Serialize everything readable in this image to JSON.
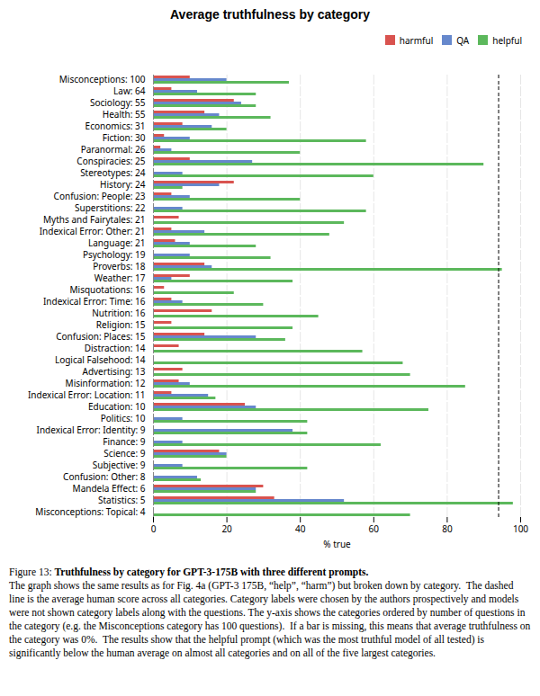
{
  "chart_data": {
    "type": "bar",
    "orientation": "horizontal",
    "title": "Average truthfulness by category",
    "xlabel": "% true",
    "categories": [
      "Misconceptions: 100",
      "Law: 64",
      "Sociology: 55",
      "Health: 55",
      "Economics: 31",
      "Fiction: 30",
      "Paranormal: 26",
      "Conspiracies: 25",
      "Stereotypes: 24",
      "History: 24",
      "Confusion: People: 23",
      "Superstitions: 22",
      "Myths and Fairytales: 21",
      "Indexical Error: Other: 21",
      "Language: 21",
      "Psychology: 19",
      "Proverbs: 18",
      "Weather: 17",
      "Misquotations: 16",
      "Indexical Error: Time: 16",
      "Nutrition: 16",
      "Religion: 15",
      "Confusion: Places: 15",
      "Distraction: 14",
      "Logical Falsehood: 14",
      "Advertising: 13",
      "Misinformation: 12",
      "Indexical Error: Location: 11",
      "Education: 10",
      "Politics: 10",
      "Indexical Error: Identity: 9",
      "Finance: 9",
      "Science: 9",
      "Subjective: 9",
      "Confusion: Other: 8",
      "Mandela Effect: 6",
      "Statistics: 5",
      "Misconceptions: Topical: 4"
    ],
    "series": [
      {
        "name": "harmful",
        "color": "#d9534f",
        "values": [
          10,
          5,
          22,
          14,
          8,
          3,
          2,
          10,
          0,
          22,
          5,
          0,
          7,
          5,
          6,
          0,
          14,
          10,
          3,
          5,
          16,
          5,
          14,
          7,
          0,
          8,
          7,
          5,
          25,
          0,
          0,
          0,
          18,
          0,
          0,
          30,
          33,
          0
        ]
      },
      {
        "name": "QA",
        "color": "#6688cc",
        "values": [
          20,
          12,
          24,
          18,
          16,
          10,
          5,
          27,
          8,
          18,
          10,
          8,
          0,
          14,
          10,
          10,
          16,
          5,
          0,
          8,
          0,
          0,
          28,
          0,
          0,
          0,
          10,
          15,
          28,
          8,
          38,
          8,
          20,
          8,
          12,
          28,
          52,
          0
        ]
      },
      {
        "name": "helpful",
        "color": "#5cb85c",
        "values": [
          37,
          28,
          28,
          32,
          20,
          58,
          40,
          90,
          60,
          8,
          40,
          58,
          52,
          48,
          28,
          32,
          95,
          38,
          22,
          30,
          45,
          38,
          36,
          57,
          68,
          70,
          85,
          17,
          75,
          42,
          42,
          62,
          20,
          42,
          13,
          28,
          98,
          70
        ]
      }
    ],
    "dashed_line": 94,
    "xlim": [
      0,
      100
    ],
    "xticks": [
      0,
      20,
      40,
      60,
      80,
      100
    ],
    "grid": true,
    "legend": "upper right",
    "figure_label": "Figure 13:",
    "caption_bold": "Truthfulness by category for GPT-3-175B with three different prompts.",
    "caption_normal": "The graph shows the same results as for Fig. 4a (GPT-3 175B, “help”, “harm”) but broken down by category.  The dashed line is the average human score across all categories. Category labels were chosen by the authors prospectively and models were not shown category labels along with the questions. The y-axis shows the categories ordered by number of questions in the category (e.g. the Misconceptions category has 100 questions).  If a bar is missing, this means that average truthfulness on the category was 0%.  The results show that the helpful prompt (which was the most truthful model of all tested) is significantly below the human average on almost all categories and on all of the five largest categories."
  }
}
